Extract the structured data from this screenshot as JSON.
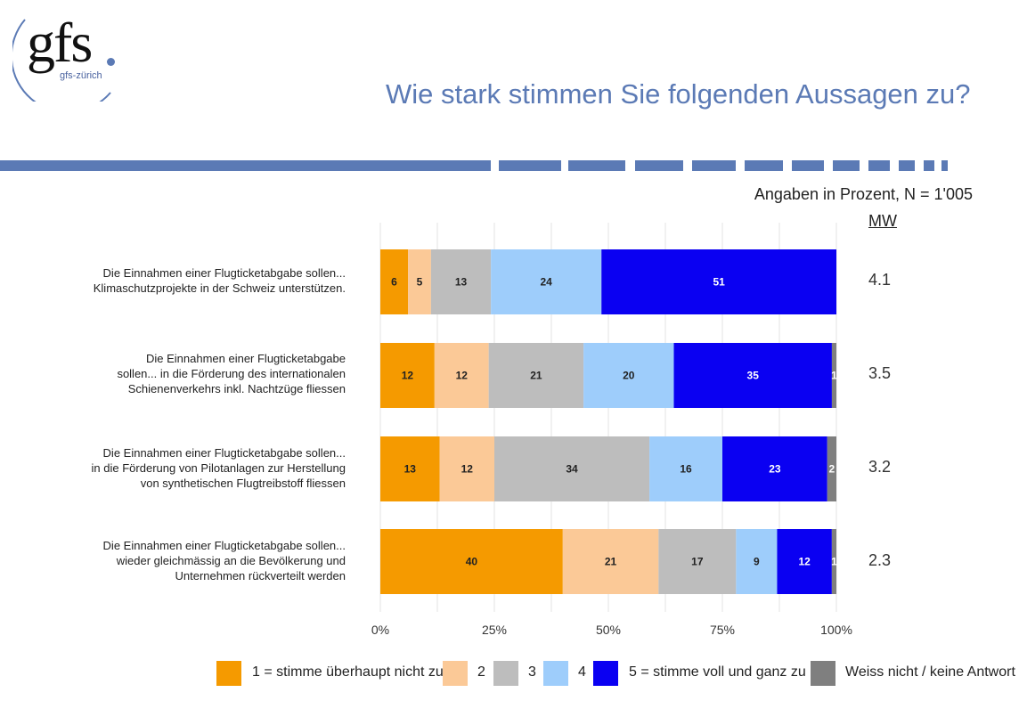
{
  "logo": {
    "text": "gfs",
    "sub": "gfs-zürich"
  },
  "title": "Wie stark stimmen Sie folgenden Aussagen zu?",
  "subtitle": "Angaben in Prozent, N = 1'005",
  "mw_header": "MW",
  "colors": {
    "c1": "#f59a00",
    "c2": "#fbc997",
    "c3": "#bdbdbd",
    "c4": "#9ecdfb",
    "c5": "#0a00f2",
    "cna": "#7f7f7f",
    "stripe": "#5b7ab5"
  },
  "chart_data": {
    "type": "bar",
    "orientation": "horizontal-stacked-100",
    "categories": [
      [
        "Die Einnahmen einer Flugticketabgabe sollen...",
        "Klimaschutzprojekte in der Schweiz unterstützen."
      ],
      [
        "Die Einnahmen einer Flugticketabgabe",
        "sollen... in die Förderung des internationalen",
        "Schienenverkehrs inkl. Nachtzüge fliessen"
      ],
      [
        "Die Einnahmen einer Flugticketabgabe sollen...",
        "in die Förderung von Pilotanlagen zur Herstellung",
        "von synthetischen Flugtreibstoff fliessen"
      ],
      [
        "Die Einnahmen einer Flugticketabgabe sollen...",
        "wieder gleichmässig an die Bevölkerung und",
        "Unternehmen rückverteilt werden"
      ]
    ],
    "series": [
      {
        "name": "1 = stimme überhaupt nicht zu",
        "color": "#f59a00",
        "values": [
          6,
          12,
          13,
          40
        ]
      },
      {
        "name": "2",
        "color": "#fbc997",
        "values": [
          5,
          12,
          12,
          21
        ]
      },
      {
        "name": "3",
        "color": "#bdbdbd",
        "values": [
          13,
          21,
          34,
          17
        ]
      },
      {
        "name": "4",
        "color": "#9ecdfb",
        "values": [
          24,
          20,
          16,
          9
        ]
      },
      {
        "name": "5 = stimme voll und ganz zu",
        "color": "#0a00f2",
        "values": [
          51,
          35,
          23,
          12
        ]
      },
      {
        "name": "Weiss nicht / keine Antwort",
        "color": "#7f7f7f",
        "values": [
          0,
          1,
          2,
          1
        ]
      }
    ],
    "mw": [
      "4.1",
      "3.5",
      "3.2",
      "2.3"
    ],
    "xticks": [
      "0%",
      "25%",
      "50%",
      "75%",
      "100%"
    ],
    "xlim": [
      0,
      100
    ],
    "grid": true
  }
}
